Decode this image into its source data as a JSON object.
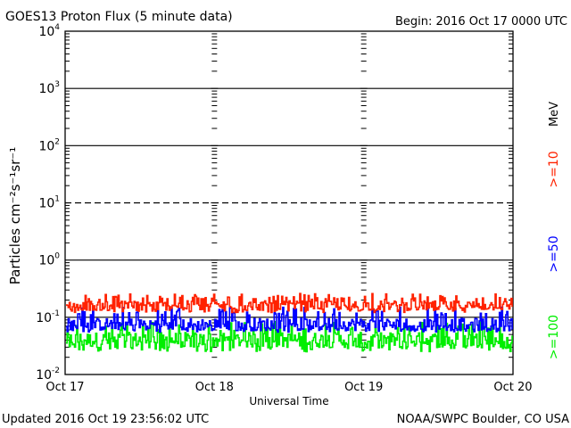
{
  "header": {
    "title": "GOES13 Proton Flux (5 minute data)",
    "begin": "Begin: 2016 Oct 17 0000 UTC"
  },
  "footer": {
    "updated": "Updated 2016 Oct 19 23:56:02 UTC",
    "credit": "NOAA/SWPC Boulder, CO USA"
  },
  "chart_data": {
    "type": "line",
    "xlabel": "Universal Time",
    "ylabel": "Particles cm⁻²s⁻¹sr⁻¹",
    "y_scale": "log",
    "ylim": [
      0.01,
      10000
    ],
    "y_ticks": [
      {
        "value": 10000,
        "base": "10",
        "exp": "4"
      },
      {
        "value": 1000,
        "base": "10",
        "exp": "3"
      },
      {
        "value": 100,
        "base": "10",
        "exp": "2"
      },
      {
        "value": 10,
        "base": "10",
        "exp": "1"
      },
      {
        "value": 1,
        "base": "10",
        "exp": "0"
      },
      {
        "value": 0.1,
        "base": "10",
        "exp": "-1"
      },
      {
        "value": 0.01,
        "base": "10",
        "exp": "-2"
      }
    ],
    "x_ticks": [
      "Oct 17",
      "Oct 18",
      "Oct 19",
      "Oct 20"
    ],
    "x_range_days": [
      0,
      3
    ],
    "series": [
      {
        "name": ">=10",
        "color": "#ff2200",
        "min": 0.12,
        "max": 0.26,
        "typical": 0.16
      },
      {
        "name": ">=50",
        "color": "#0000ff",
        "min": 0.055,
        "max": 0.15,
        "typical": 0.075
      },
      {
        "name": ">=100",
        "color": "#00ee00",
        "min": 0.025,
        "max": 0.085,
        "typical": 0.04
      }
    ],
    "unit_label": "MeV",
    "reference_lines": [
      {
        "value": 1000,
        "style": "solid"
      },
      {
        "value": 100,
        "style": "solid"
      },
      {
        "value": 10,
        "style": "dashed"
      },
      {
        "value": 1,
        "style": "solid"
      },
      {
        "value": 0.1,
        "style": "solid"
      }
    ]
  }
}
